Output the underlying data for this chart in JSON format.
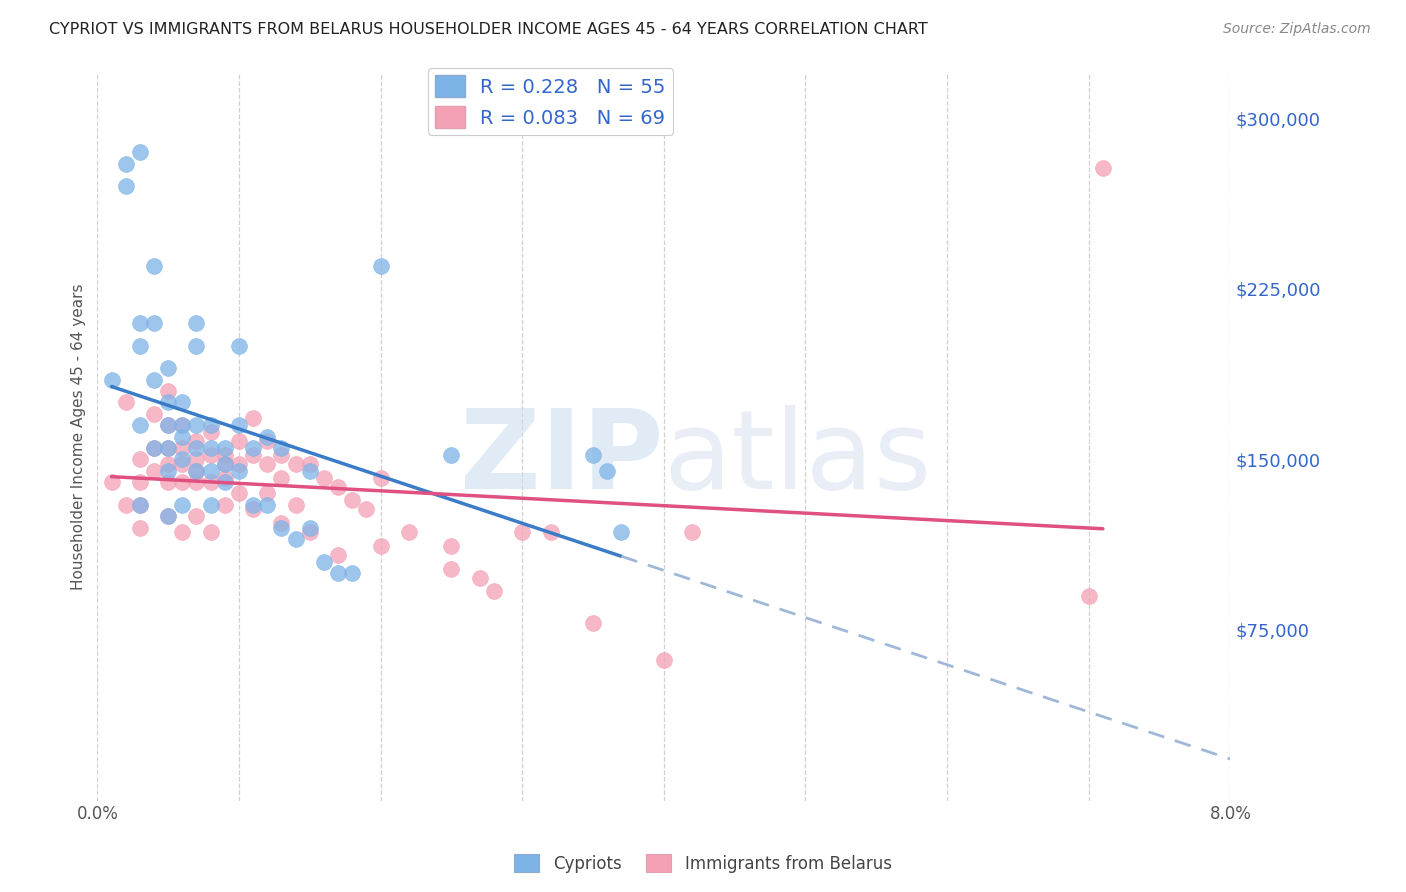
{
  "title": "CYPRIOT VS IMMIGRANTS FROM BELARUS HOUSEHOLDER INCOME AGES 45 - 64 YEARS CORRELATION CHART",
  "source": "Source: ZipAtlas.com",
  "ylabel": "Householder Income Ages 45 - 64 years",
  "x_min": 0.0,
  "x_max": 0.08,
  "y_min": 0,
  "y_max": 320000,
  "y_tick_labels_right": [
    "$75,000",
    "$150,000",
    "$225,000",
    "$300,000"
  ],
  "y_tick_values_right": [
    75000,
    150000,
    225000,
    300000
  ],
  "cypriot_color": "#7EB3E8",
  "belarus_color": "#F4A0B5",
  "cypriot_line_color": "#3A7CC8",
  "cypriot_dash_color": "#A0B8D8",
  "belarus_line_color": "#E05080",
  "background_color": "#ffffff",
  "grid_color": "#cccccc",
  "cypriot_scatter_x": [
    0.001,
    0.002,
    0.002,
    0.003,
    0.003,
    0.003,
    0.003,
    0.003,
    0.004,
    0.004,
    0.004,
    0.004,
    0.005,
    0.005,
    0.005,
    0.005,
    0.005,
    0.005,
    0.006,
    0.006,
    0.006,
    0.006,
    0.006,
    0.007,
    0.007,
    0.007,
    0.007,
    0.007,
    0.008,
    0.008,
    0.008,
    0.008,
    0.009,
    0.009,
    0.009,
    0.01,
    0.01,
    0.01,
    0.011,
    0.011,
    0.012,
    0.012,
    0.013,
    0.013,
    0.014,
    0.015,
    0.015,
    0.016,
    0.017,
    0.018,
    0.02,
    0.025,
    0.035,
    0.036,
    0.037
  ],
  "cypriot_scatter_y": [
    185000,
    270000,
    280000,
    285000,
    200000,
    210000,
    165000,
    130000,
    235000,
    210000,
    185000,
    155000,
    190000,
    175000,
    165000,
    155000,
    145000,
    125000,
    175000,
    165000,
    160000,
    150000,
    130000,
    210000,
    200000,
    165000,
    155000,
    145000,
    165000,
    155000,
    145000,
    130000,
    155000,
    148000,
    140000,
    200000,
    165000,
    145000,
    155000,
    130000,
    160000,
    130000,
    155000,
    120000,
    115000,
    145000,
    120000,
    105000,
    100000,
    100000,
    235000,
    152000,
    152000,
    145000,
    118000
  ],
  "belarus_scatter_x": [
    0.001,
    0.002,
    0.002,
    0.003,
    0.003,
    0.003,
    0.003,
    0.004,
    0.004,
    0.004,
    0.005,
    0.005,
    0.005,
    0.005,
    0.005,
    0.005,
    0.006,
    0.006,
    0.006,
    0.006,
    0.006,
    0.007,
    0.007,
    0.007,
    0.007,
    0.007,
    0.008,
    0.008,
    0.008,
    0.008,
    0.009,
    0.009,
    0.009,
    0.009,
    0.01,
    0.01,
    0.01,
    0.011,
    0.011,
    0.011,
    0.012,
    0.012,
    0.012,
    0.013,
    0.013,
    0.013,
    0.014,
    0.014,
    0.015,
    0.015,
    0.016,
    0.017,
    0.017,
    0.018,
    0.019,
    0.02,
    0.02,
    0.022,
    0.025,
    0.025,
    0.027,
    0.028,
    0.03,
    0.032,
    0.035,
    0.04,
    0.042,
    0.07,
    0.071
  ],
  "belarus_scatter_y": [
    140000,
    175000,
    130000,
    150000,
    140000,
    130000,
    120000,
    170000,
    155000,
    145000,
    180000,
    165000,
    155000,
    148000,
    140000,
    125000,
    165000,
    155000,
    148000,
    140000,
    118000,
    158000,
    150000,
    145000,
    140000,
    125000,
    162000,
    152000,
    140000,
    118000,
    152000,
    148000,
    142000,
    130000,
    158000,
    148000,
    135000,
    168000,
    152000,
    128000,
    158000,
    148000,
    135000,
    152000,
    142000,
    122000,
    148000,
    130000,
    148000,
    118000,
    142000,
    138000,
    108000,
    132000,
    128000,
    142000,
    112000,
    118000,
    112000,
    102000,
    98000,
    92000,
    118000,
    118000,
    78000,
    62000,
    118000,
    90000,
    278000
  ]
}
